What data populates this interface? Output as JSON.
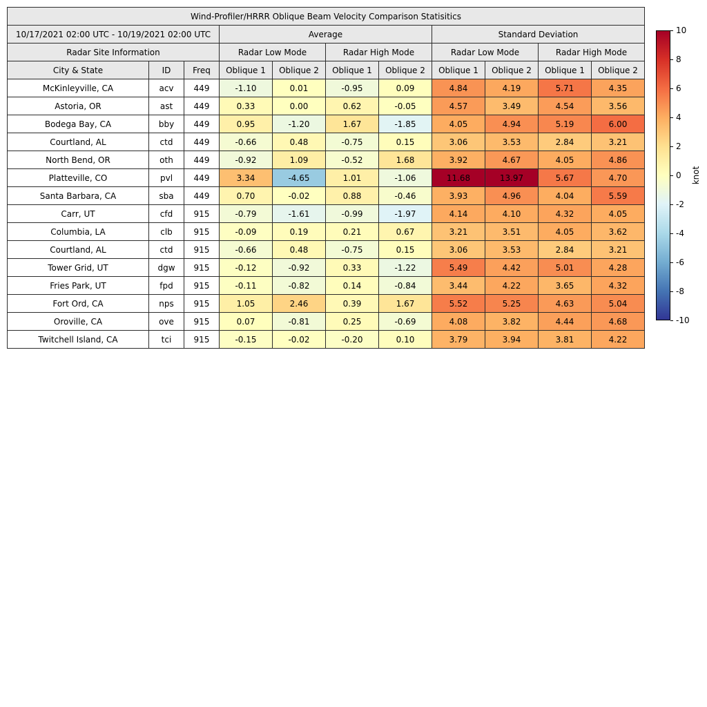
{
  "table": {
    "title": "Wind-Profiler/HRRR Oblique Beam Velocity Comparison Statisitics",
    "date_range": "10/17/2021 02:00 UTC - 10/19/2021 02:00 UTC",
    "avg_label": "Average",
    "std_label": "Standard Deviation",
    "site_info_label": "Radar Site Information",
    "low_mode_label": "Radar Low Mode",
    "high_mode_label": "Radar High Mode",
    "col_city": "City & State",
    "col_id": "ID",
    "col_freq": "Freq",
    "col_oblique1": "Oblique 1",
    "col_oblique2": "Oblique 2",
    "header_bg": "#e8e8e8",
    "border_color": "#2b2b2b"
  },
  "chart_data": {
    "type": "table",
    "title": "Wind-Profiler/HRRR Oblique Beam Velocity Comparison Statisitics",
    "column_groups": [
      "Average / Radar Low Mode",
      "Average / Radar High Mode",
      "Standard Deviation / Radar Low Mode",
      "Standard Deviation / Radar High Mode"
    ],
    "value_columns": [
      "Avg Low Oblique 1",
      "Avg Low Oblique 2",
      "Avg High Oblique 1",
      "Avg High Oblique 2",
      "Std Low Oblique 1",
      "Std Low Oblique 2",
      "Std High Oblique 1",
      "Std High Oblique 2"
    ],
    "rows": [
      {
        "city": "McKinleyville, CA",
        "id": "acv",
        "freq": "449",
        "values": [
          -1.1,
          0.01,
          -0.95,
          0.09,
          4.84,
          4.19,
          5.71,
          4.35
        ]
      },
      {
        "city": "Astoria, OR",
        "id": "ast",
        "freq": "449",
        "values": [
          0.33,
          0.0,
          0.62,
          -0.05,
          4.57,
          3.49,
          4.54,
          3.56
        ]
      },
      {
        "city": "Bodega Bay, CA",
        "id": "bby",
        "freq": "449",
        "values": [
          0.95,
          -1.2,
          1.67,
          -1.85,
          4.05,
          4.94,
          5.19,
          6.0
        ]
      },
      {
        "city": "Courtland, AL",
        "id": "ctd",
        "freq": "449",
        "values": [
          -0.66,
          0.48,
          -0.75,
          0.15,
          3.06,
          3.53,
          2.84,
          3.21
        ]
      },
      {
        "city": "North Bend, OR",
        "id": "oth",
        "freq": "449",
        "values": [
          -0.92,
          1.09,
          -0.52,
          1.68,
          3.92,
          4.67,
          4.05,
          4.86
        ]
      },
      {
        "city": "Platteville, CO",
        "id": "pvl",
        "freq": "449",
        "values": [
          3.34,
          -4.65,
          1.01,
          -1.06,
          11.68,
          13.97,
          5.67,
          4.7
        ]
      },
      {
        "city": "Santa Barbara, CA",
        "id": "sba",
        "freq": "449",
        "values": [
          0.7,
          -0.02,
          0.88,
          -0.46,
          3.93,
          4.96,
          4.04,
          5.59
        ]
      },
      {
        "city": "Carr, UT",
        "id": "cfd",
        "freq": "915",
        "values": [
          -0.79,
          -1.61,
          -0.99,
          -1.97,
          4.14,
          4.1,
          4.32,
          4.05
        ]
      },
      {
        "city": "Columbia, LA",
        "id": "clb",
        "freq": "915",
        "values": [
          -0.09,
          0.19,
          0.21,
          0.67,
          3.21,
          3.51,
          4.05,
          3.62
        ]
      },
      {
        "city": "Courtland, AL",
        "id": "ctd",
        "freq": "915",
        "values": [
          -0.66,
          0.48,
          -0.75,
          0.15,
          3.06,
          3.53,
          2.84,
          3.21
        ]
      },
      {
        "city": "Tower Grid, UT",
        "id": "dgw",
        "freq": "915",
        "values": [
          -0.12,
          -0.92,
          0.33,
          -1.22,
          5.49,
          4.42,
          5.01,
          4.28
        ]
      },
      {
        "city": "Fries Park, UT",
        "id": "fpd",
        "freq": "915",
        "values": [
          -0.11,
          -0.82,
          0.14,
          -0.84,
          3.44,
          4.22,
          3.65,
          4.32
        ]
      },
      {
        "city": "Fort Ord, CA",
        "id": "nps",
        "freq": "915",
        "values": [
          1.05,
          2.46,
          0.39,
          1.67,
          5.52,
          5.25,
          4.63,
          5.04
        ]
      },
      {
        "city": "Oroville, CA",
        "id": "ove",
        "freq": "915",
        "values": [
          0.07,
          -0.81,
          0.25,
          -0.69,
          4.08,
          3.82,
          4.44,
          4.68
        ]
      },
      {
        "city": "Twitchell Island, CA",
        "id": "tci",
        "freq": "915",
        "values": [
          -0.15,
          -0.02,
          -0.2,
          0.1,
          3.79,
          3.94,
          3.81,
          4.22
        ]
      }
    ],
    "colormap": {
      "name": "RdYlBu_r",
      "vmin": -10,
      "vmax": 10,
      "stops_low_to_high": [
        "#313695",
        "#4575b4",
        "#74add1",
        "#abd9e9",
        "#e0f3f8",
        "#ffffbf",
        "#fee090",
        "#fdae61",
        "#f46d43",
        "#d73027",
        "#a50026"
      ]
    },
    "colorbar": {
      "label": "knot",
      "ticks": [
        10,
        8,
        6,
        4,
        2,
        0,
        -2,
        -4,
        -6,
        -8,
        -10
      ]
    }
  }
}
